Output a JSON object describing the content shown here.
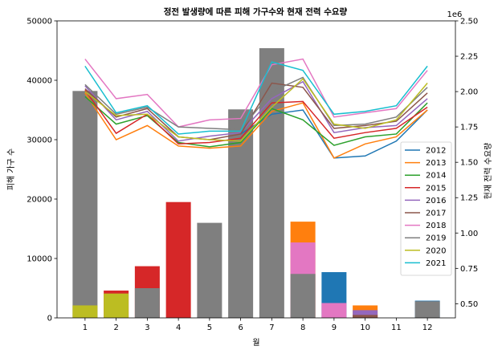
{
  "chart_data": {
    "type": "bar+line",
    "title": "정전 발생량에 따른 피해 가구수와 현재 전력 수요량",
    "xlabel": "월",
    "ylabel_left": "피해 가구 수",
    "ylabel_right": "현재 전력 수요량",
    "right_offset_label": "1e6",
    "months": [
      "1",
      "2",
      "3",
      "4",
      "5",
      "6",
      "7",
      "8",
      "9",
      "10",
      "11",
      "12"
    ],
    "left_ylim": [
      0,
      50000
    ],
    "left_ticks": [
      "0",
      "10000",
      "20000",
      "30000",
      "40000",
      "50000"
    ],
    "right_ylim": [
      400000,
      2500000
    ],
    "right_ticks": [
      "0.50",
      "0.75",
      "1.00",
      "1.25",
      "1.50",
      "1.75",
      "2.00",
      "2.25",
      "2.50"
    ],
    "right_tick_values": [
      500000,
      750000,
      1000000,
      1250000,
      1500000,
      1750000,
      2000000,
      2250000,
      2500000
    ],
    "bars": [
      {
        "name": "2012",
        "color": "#1f77b4",
        "values": [
          0,
          0,
          0,
          0,
          0,
          0,
          0,
          0,
          7700,
          0,
          0,
          2900
        ]
      },
      {
        "name": "2013",
        "color": "#ff7f0e",
        "values": [
          0,
          0,
          0,
          0,
          0,
          0,
          0,
          16200,
          0,
          2100,
          0,
          0
        ]
      },
      {
        "name": "2014",
        "color": "#2ca02c",
        "values": [
          0,
          0,
          0,
          0,
          0,
          0,
          0,
          0,
          0,
          0,
          0,
          0
        ]
      },
      {
        "name": "2015",
        "color": "#d62728",
        "values": [
          0,
          4600,
          8700,
          19500,
          0,
          0,
          0,
          0,
          0,
          0,
          0,
          0
        ]
      },
      {
        "name": "2016",
        "color": "#9467bd",
        "values": [
          0,
          0,
          0,
          0,
          0,
          0,
          0,
          0,
          0,
          1300,
          0,
          0
        ]
      },
      {
        "name": "2017",
        "color": "#8c564b",
        "values": [
          0,
          0,
          0,
          0,
          0,
          0,
          0,
          0,
          0,
          500,
          0,
          0
        ]
      },
      {
        "name": "2018",
        "color": "#e377c2",
        "values": [
          0,
          0,
          0,
          0,
          0,
          0,
          0,
          12700,
          2500,
          0,
          0,
          0
        ]
      },
      {
        "name": "2019",
        "color": "#7f7f7f",
        "values": [
          38200,
          0,
          5000,
          0,
          16000,
          35100,
          45400,
          7400,
          0,
          0,
          0,
          2800
        ]
      },
      {
        "name": "2020",
        "color": "#bcbd22",
        "values": [
          2100,
          4100,
          0,
          0,
          0,
          0,
          0,
          0,
          0,
          0,
          0,
          0
        ]
      },
      {
        "name": "2021",
        "color": "#17becf",
        "values": [
          0,
          0,
          0,
          0,
          0,
          0,
          0,
          0,
          0,
          0,
          0,
          0
        ]
      }
    ],
    "lines": [
      {
        "name": "2012",
        "color": "#1f77b4",
        "months": [
          6,
          7,
          8,
          9,
          10,
          11,
          12
        ],
        "values": [
          1700000,
          1840000,
          1870000,
          1530000,
          1545000,
          1650000,
          1870000
        ]
      },
      {
        "name": "2013",
        "color": "#ff7f0e",
        "months": [
          1,
          2,
          3,
          4,
          5,
          6,
          7,
          8,
          9,
          10,
          11,
          12
        ],
        "values": [
          1990000,
          1660000,
          1760000,
          1615000,
          1600000,
          1615000,
          1860000,
          1920000,
          1530000,
          1630000,
          1680000,
          1870000
        ]
      },
      {
        "name": "2014",
        "color": "#2ca02c",
        "months": [
          1,
          2,
          3,
          4,
          5,
          6,
          7,
          8,
          9,
          10,
          11,
          12
        ],
        "values": [
          1965000,
          1770000,
          1830000,
          1640000,
          1610000,
          1640000,
          1880000,
          1800000,
          1620000,
          1680000,
          1700000,
          1920000
        ]
      },
      {
        "name": "2015",
        "color": "#d62728",
        "months": [
          1,
          2,
          3,
          4,
          5,
          6,
          7,
          8,
          9,
          10,
          11,
          12
        ],
        "values": [
          2010000,
          1705000,
          1840000,
          1630000,
          1640000,
          1670000,
          1920000,
          1930000,
          1670000,
          1710000,
          1740000,
          1890000
        ]
      },
      {
        "name": "2016",
        "color": "#9467bd",
        "months": [
          1,
          2,
          3,
          4,
          5,
          6,
          7,
          8,
          9,
          10,
          11,
          12
        ],
        "values": [
          2040000,
          1800000,
          1860000,
          1650000,
          1685000,
          1710000,
          1950000,
          2070000,
          1710000,
          1745000,
          1760000,
          1950000
        ]
      },
      {
        "name": "2017",
        "color": "#8c564b",
        "months": [
          1,
          2,
          3,
          4,
          5,
          6,
          7,
          8,
          9,
          10,
          11,
          12
        ],
        "values": [
          2020000,
          1820000,
          1880000,
          1680000,
          1660000,
          1700000,
          2060000,
          2030000,
          1740000,
          1760000,
          1790000,
          1990000
        ]
      },
      {
        "name": "2018",
        "color": "#e377c2",
        "months": [
          1,
          2,
          3,
          4,
          5,
          6,
          7,
          8,
          9,
          10,
          11,
          12
        ],
        "values": [
          2230000,
          1950000,
          1980000,
          1750000,
          1800000,
          1810000,
          2190000,
          2230000,
          1820000,
          1850000,
          1880000,
          2150000
        ]
      },
      {
        "name": "2019",
        "color": "#7f7f7f",
        "months": [
          1,
          2,
          3,
          4,
          5,
          6,
          7,
          8,
          9,
          10,
          11,
          12
        ],
        "values": [
          2050000,
          1840000,
          1890000,
          1750000,
          1740000,
          1730000,
          2000000,
          2100000,
          1760000,
          1770000,
          1820000,
          2030000
        ]
      },
      {
        "name": "2020",
        "color": "#bcbd22",
        "months": [
          1,
          2,
          3,
          4,
          5,
          6,
          7,
          8,
          9,
          10,
          11,
          12
        ],
        "values": [
          2000000,
          1830000,
          1840000,
          1680000,
          1660000,
          1650000,
          1890000,
          2090000,
          1770000,
          1740000,
          1800000,
          2060000
        ]
      },
      {
        "name": "2021",
        "color": "#17becf",
        "months": [
          1,
          2,
          3,
          4,
          5,
          6,
          7,
          8,
          9,
          10,
          11,
          12
        ],
        "values": [
          2180000,
          1850000,
          1900000,
          1700000,
          1720000,
          1720000,
          2210000,
          2150000,
          1840000,
          1860000,
          1900000,
          2180000
        ]
      }
    ],
    "legend": {
      "position": "right-middle",
      "entries": [
        "2012",
        "2013",
        "2014",
        "2015",
        "2016",
        "2017",
        "2018",
        "2019",
        "2020",
        "2021"
      ]
    }
  }
}
